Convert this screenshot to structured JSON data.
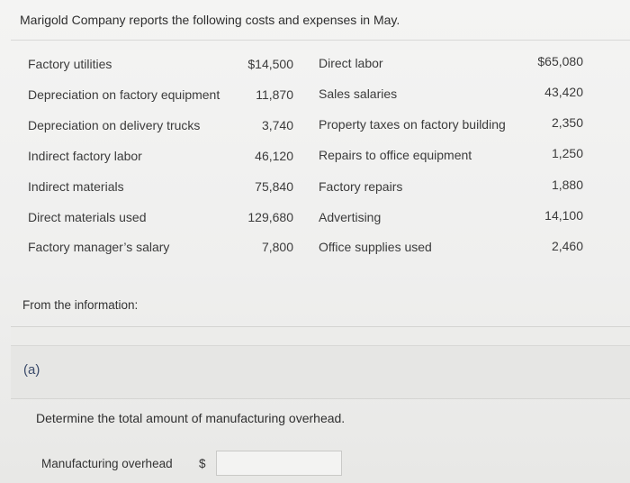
{
  "intro": "Marigold Company reports the following costs and expenses in May.",
  "left_items": [
    {
      "label": "Factory utilities",
      "amount": "$14,500"
    },
    {
      "label": "Depreciation on factory equipment",
      "amount": "11,870"
    },
    {
      "label": "Depreciation on delivery trucks",
      "amount": "3,740"
    },
    {
      "label": "Indirect factory labor",
      "amount": "46,120"
    },
    {
      "label": "Indirect materials",
      "amount": "75,840"
    },
    {
      "label": "Direct materials used",
      "amount": "129,680"
    },
    {
      "label": "Factory manager’s salary",
      "amount": "7,800"
    }
  ],
  "right_items": [
    {
      "label": "Direct labor",
      "amount": "$65,080"
    },
    {
      "label": "Sales salaries",
      "amount": "43,420"
    },
    {
      "label": "Property taxes on factory building",
      "amount": "2,350"
    },
    {
      "label": "Repairs to office equipment",
      "amount": "1,250"
    },
    {
      "label": "Factory repairs",
      "amount": "1,880"
    },
    {
      "label": "Advertising",
      "amount": "14,100"
    },
    {
      "label": "Office supplies used",
      "amount": "2,460"
    }
  ],
  "from_info": "From the information:",
  "part": "(a)",
  "question": "Determine the total amount of manufacturing overhead.",
  "answer": {
    "label": "Manufacturing overhead",
    "currency": "$",
    "value": ""
  }
}
